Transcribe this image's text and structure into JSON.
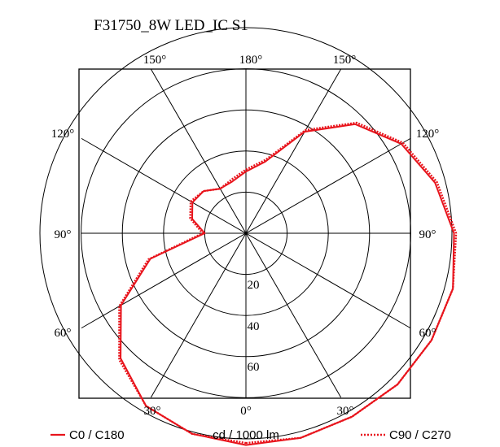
{
  "chart_data": {
    "type": "polar",
    "title": "F31750_8W  LED_IC S1",
    "unit_label": "cd / 1000 lm",
    "radial_ticks": [
      "20",
      "40",
      "60"
    ],
    "radial_ring_values": [
      20,
      40,
      60,
      80,
      100
    ],
    "angle_labels": {
      "top": [
        "150°",
        "180°",
        "150°"
      ],
      "left": [
        "120°",
        "90°",
        "60°"
      ],
      "right": [
        "120°",
        "90°",
        "60°"
      ],
      "bottom": [
        "30°",
        "0°",
        "30°"
      ]
    },
    "grid": true,
    "colors": {
      "series": "#e8141c",
      "grid": "#000000"
    },
    "series": [
      {
        "name": "C0 / C180",
        "style": "solid",
        "points": [
          {
            "angle": 0,
            "value": 103
          },
          {
            "angle": 15,
            "value": 103
          },
          {
            "angle": 30,
            "value": 103
          },
          {
            "angle": 45,
            "value": 104
          },
          {
            "angle": 60,
            "value": 104
          },
          {
            "angle": 75,
            "value": 104
          },
          {
            "angle": 90,
            "value": 101
          },
          {
            "angle": 105,
            "value": 95
          },
          {
            "angle": 120,
            "value": 87
          },
          {
            "angle": 135,
            "value": 75
          },
          {
            "angle": 150,
            "value": 57
          },
          {
            "angle": 165,
            "value": 36
          },
          {
            "angle": 180,
            "value": 30
          },
          {
            "angle": 195,
            "value": 26
          },
          {
            "angle": 210,
            "value": 25
          },
          {
            "angle": 225,
            "value": 29
          },
          {
            "angle": 240,
            "value": 30
          },
          {
            "angle": 255,
            "value": 27
          },
          {
            "angle": 270,
            "value": 20
          },
          {
            "angle": 285,
            "value": 48
          },
          {
            "angle": 300,
            "value": 70
          },
          {
            "angle": 315,
            "value": 86
          },
          {
            "angle": 330,
            "value": 97
          },
          {
            "angle": 345,
            "value": 101
          },
          {
            "angle": 360,
            "value": 103
          }
        ]
      },
      {
        "name": "C90 / C270",
        "style": "dotted",
        "points": [
          {
            "angle": 0,
            "value": 102
          },
          {
            "angle": 15,
            "value": 103
          },
          {
            "angle": 30,
            "value": 103
          },
          {
            "angle": 45,
            "value": 104
          },
          {
            "angle": 60,
            "value": 104
          },
          {
            "angle": 75,
            "value": 104
          },
          {
            "angle": 90,
            "value": 102
          },
          {
            "angle": 105,
            "value": 96
          },
          {
            "angle": 120,
            "value": 88
          },
          {
            "angle": 135,
            "value": 76
          },
          {
            "angle": 150,
            "value": 58
          },
          {
            "angle": 165,
            "value": 37
          },
          {
            "angle": 180,
            "value": 31
          },
          {
            "angle": 195,
            "value": 27
          },
          {
            "angle": 210,
            "value": 25
          },
          {
            "angle": 225,
            "value": 29
          },
          {
            "angle": 240,
            "value": 31
          },
          {
            "angle": 255,
            "value": 28
          },
          {
            "angle": 270,
            "value": 21
          },
          {
            "angle": 285,
            "value": 49
          },
          {
            "angle": 300,
            "value": 71
          },
          {
            "angle": 315,
            "value": 87
          },
          {
            "angle": 330,
            "value": 97
          },
          {
            "angle": 345,
            "value": 101
          },
          {
            "angle": 360,
            "value": 102
          }
        ]
      }
    ]
  }
}
